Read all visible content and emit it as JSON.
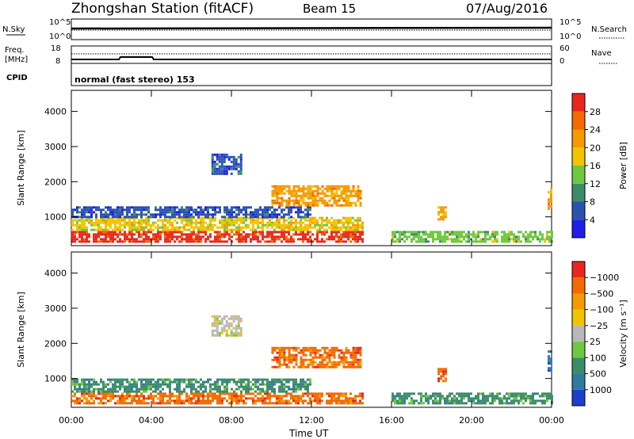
{
  "header": {
    "station": "Zhongshan Station (fitACF)",
    "beam": "Beam 15",
    "date": "07/Aug/2016"
  },
  "panels": {
    "nsky_label": "N.Sky",
    "nsky_ticks": [
      "10^5",
      "10^0"
    ],
    "nsearch_label": "N.Search",
    "nsearch_ticks": [
      "10^5",
      "10^0"
    ],
    "freq_label": "Freq.",
    "freq_unit": "[MHz]",
    "freq_ticks": [
      "18",
      "8"
    ],
    "nave_label": "Nave",
    "nave_ticks": [
      "60",
      "0"
    ],
    "cpid_label": "CPID",
    "cpid_text": "normal (fast stereo) 153"
  },
  "chart_data": [
    {
      "type": "heatmap",
      "name": "power",
      "xlabel": "Time UT",
      "ylabel": "Slant Range [km]",
      "x_ticks": [
        "00:00",
        "04:00",
        "08:00",
        "12:00",
        "16:00",
        "20:00",
        "00:00"
      ],
      "xlim_hours": [
        0,
        24
      ],
      "ylim": [
        180,
        4600
      ],
      "y_ticks": [
        "1000",
        "2000",
        "3000",
        "4000"
      ],
      "colorbar": {
        "label": "Power [dB]",
        "ticks": [
          "4",
          "8",
          "12",
          "16",
          "20",
          "24",
          "28"
        ],
        "colors": [
          "#1e1ee8",
          "#2a52b0",
          "#3c8c6a",
          "#6fc840",
          "#f2c400",
          "#f59a00",
          "#f26a00",
          "#e8281e"
        ],
        "range": [
          0,
          32
        ]
      },
      "regions": [
        {
          "t": [
            0.0,
            14.5
          ],
          "r": [
            300,
            600
          ],
          "level": 28
        },
        {
          "t": [
            0.0,
            14.5
          ],
          "r": [
            600,
            1000
          ],
          "level": 16
        },
        {
          "t": [
            0.0,
            12.0
          ],
          "r": [
            1000,
            1300
          ],
          "level": 6
        },
        {
          "t": [
            7.0,
            8.5
          ],
          "r": [
            2200,
            2800
          ],
          "level": 6
        },
        {
          "t": [
            10.0,
            14.5
          ],
          "r": [
            1300,
            1900
          ],
          "level": 20
        },
        {
          "t": [
            16.0,
            24.0
          ],
          "r": [
            300,
            600
          ],
          "level": 14
        },
        {
          "t": [
            18.3,
            18.7
          ],
          "r": [
            900,
            1300
          ],
          "level": 20
        },
        {
          "t": [
            23.8,
            24.0
          ],
          "r": [
            1200,
            1800
          ],
          "level": 20
        }
      ]
    },
    {
      "type": "heatmap",
      "name": "velocity",
      "xlabel": "Time UT",
      "ylabel": "Slant Range [km]",
      "x_ticks": [
        "00:00",
        "04:00",
        "08:00",
        "12:00",
        "16:00",
        "20:00",
        "00:00"
      ],
      "xlim_hours": [
        0,
        24
      ],
      "ylim": [
        180,
        4600
      ],
      "y_ticks": [
        "1000",
        "2000",
        "3000",
        "4000"
      ],
      "colorbar": {
        "label": "Velocity [m s⁻¹]",
        "ticks": [
          "1000",
          "500",
          "100",
          "25",
          "−25",
          "−100",
          "−500",
          "−1000"
        ],
        "colors": [
          "#1e3ecc",
          "#2f7aa0",
          "#3c8c6a",
          "#6fc840",
          "#b8b8b8",
          "#f2c400",
          "#f59a00",
          "#f26a00",
          "#e8281e"
        ]
      },
      "regions": [
        {
          "t": [
            0.0,
            14.5
          ],
          "r": [
            300,
            600
          ],
          "level": -500
        },
        {
          "t": [
            0.0,
            12.0
          ],
          "r": [
            600,
            1000
          ],
          "level": 100
        },
        {
          "t": [
            7.0,
            8.5
          ],
          "r": [
            2200,
            2800
          ],
          "level": 25
        },
        {
          "t": [
            10.0,
            14.5
          ],
          "r": [
            1300,
            1900
          ],
          "level": -500
        },
        {
          "t": [
            16.0,
            24.0
          ],
          "r": [
            300,
            600
          ],
          "level": 100
        },
        {
          "t": [
            18.3,
            18.7
          ],
          "r": [
            900,
            1300
          ],
          "level": -500
        },
        {
          "t": [
            23.8,
            24.0
          ],
          "r": [
            1200,
            1800
          ],
          "level": 500
        }
      ]
    }
  ]
}
